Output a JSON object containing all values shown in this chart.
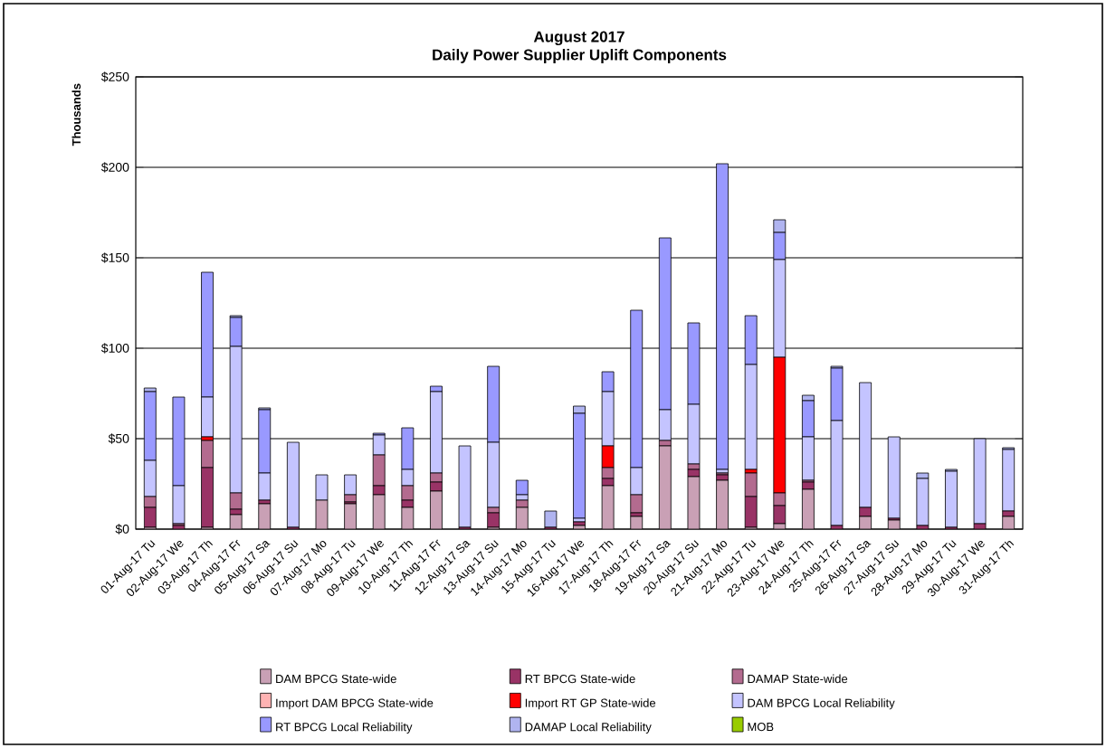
{
  "chart_data": {
    "type": "bar",
    "title": "August 2017",
    "subtitle": "Daily Power Supplier Uplift Components",
    "ylabel": "Thousands",
    "categories": [
      "01-Aug-17 Tu",
      "02-Aug-17 We",
      "03-Aug-17 Th",
      "04-Aug-17 Fr",
      "05-Aug-17 Sa",
      "06-Aug-17 Su",
      "07-Aug-17 Mo",
      "08-Aug-17 Tu",
      "09-Aug-17 We",
      "10-Aug-17 Th",
      "11-Aug-17 Fr",
      "12-Aug-17 Sa",
      "13-Aug-17 Su",
      "14-Aug-17 Mo",
      "15-Aug-17 Tu",
      "16-Aug-17 We",
      "17-Aug-17 Th",
      "18-Aug-17 Fr",
      "19-Aug-17 Sa",
      "20-Aug-17 Su",
      "21-Aug-17 Mo",
      "22-Aug-17 Tu",
      "23-Aug-17 We",
      "24-Aug-17 Th",
      "25-Aug-17 Fr",
      "26-Aug-17 Sa",
      "27-Aug-17 Su",
      "28-Aug-17 Mo",
      "29-Aug-17 Tu",
      "30-Aug-17 We",
      "31-Aug-17 Th"
    ],
    "series": [
      {
        "name": "DAM BPCG State-wide",
        "color": "#c9a0b5",
        "values": [
          1,
          0,
          1,
          8,
          14,
          0,
          16,
          14,
          19,
          12,
          21,
          0,
          1,
          12,
          0,
          2,
          24,
          7,
          46,
          29,
          27,
          1,
          3,
          22,
          0,
          7,
          5,
          0,
          0,
          0,
          7
        ]
      },
      {
        "name": "RT BPCG State-wide",
        "color": "#993366",
        "values": [
          11,
          2,
          33,
          3,
          2,
          1,
          0,
          1,
          5,
          4,
          5,
          1,
          8,
          0,
          1,
          2,
          4,
          2,
          0,
          4,
          3,
          17,
          10,
          4,
          2,
          5,
          1,
          2,
          1,
          3,
          3
        ]
      },
      {
        "name": "DAMAP State-wide",
        "color": "#b36b8f",
        "values": [
          6,
          1,
          15,
          9,
          0,
          0,
          0,
          4,
          17,
          8,
          5,
          0,
          3,
          4,
          0,
          0,
          6,
          10,
          3,
          3,
          1,
          13,
          7,
          1,
          0,
          0,
          0,
          0,
          0,
          0,
          0
        ]
      },
      {
        "name": "Import DAM BPCG State-wide",
        "color": "#ffb3b3",
        "values": [
          0,
          0,
          0,
          0,
          0,
          0,
          0,
          0,
          0,
          0,
          0,
          0,
          0,
          0,
          0,
          0,
          0,
          0,
          0,
          0,
          0,
          0,
          0,
          0,
          0,
          0,
          0,
          0,
          0,
          0,
          0
        ]
      },
      {
        "name": "Import RT GP State-wide",
        "color": "#ff0000",
        "values": [
          0,
          0,
          2,
          0,
          0,
          0,
          0,
          0,
          0,
          0,
          0,
          0,
          0,
          0,
          0,
          0,
          12,
          0,
          0,
          0,
          0,
          2,
          75,
          0,
          0,
          0,
          0,
          0,
          0,
          0,
          0
        ]
      },
      {
        "name": "DAM BPCG Local Reliability",
        "color": "#c4c4ff",
        "values": [
          20,
          21,
          22,
          81,
          15,
          47,
          14,
          11,
          11,
          9,
          45,
          45,
          36,
          3,
          0,
          2,
          30,
          15,
          17,
          33,
          2,
          58,
          54,
          24,
          58,
          69,
          45,
          26,
          31,
          47,
          34
        ]
      },
      {
        "name": "RT BPCG Local Reliability",
        "color": "#9999ff",
        "values": [
          38,
          49,
          69,
          16,
          35,
          0,
          0,
          0,
          1,
          23,
          3,
          0,
          42,
          8,
          0,
          58,
          11,
          87,
          95,
          45,
          169,
          27,
          15,
          20,
          29,
          0,
          0,
          0,
          0,
          0,
          0
        ]
      },
      {
        "name": "DAMAP Local Reliability",
        "color": "#b0b4f0",
        "values": [
          2,
          0,
          0,
          1,
          1,
          0,
          0,
          0,
          0,
          0,
          0,
          0,
          0,
          0,
          9,
          4,
          0,
          0,
          0,
          0,
          0,
          0,
          7,
          3,
          1,
          0,
          0,
          3,
          1,
          0,
          1
        ]
      },
      {
        "name": "MOB",
        "color": "#99cc00",
        "values": [
          0,
          0,
          0,
          0,
          0,
          0,
          0,
          0,
          0,
          0,
          0,
          0,
          0,
          0,
          0,
          0,
          0,
          0,
          0,
          0,
          0,
          0,
          0,
          0,
          0,
          0,
          0,
          0,
          0,
          0,
          0
        ]
      }
    ],
    "stacked": true,
    "ylim": [
      0,
      250
    ],
    "yticks": [
      {
        "value": 0,
        "label": "$0"
      },
      {
        "value": 50,
        "label": "$50"
      },
      {
        "value": 100,
        "label": "$100"
      },
      {
        "value": 150,
        "label": "$150"
      },
      {
        "value": 200,
        "label": "$200"
      },
      {
        "value": 250,
        "label": "$250"
      }
    ],
    "grid": "y",
    "legend": "bottom"
  }
}
